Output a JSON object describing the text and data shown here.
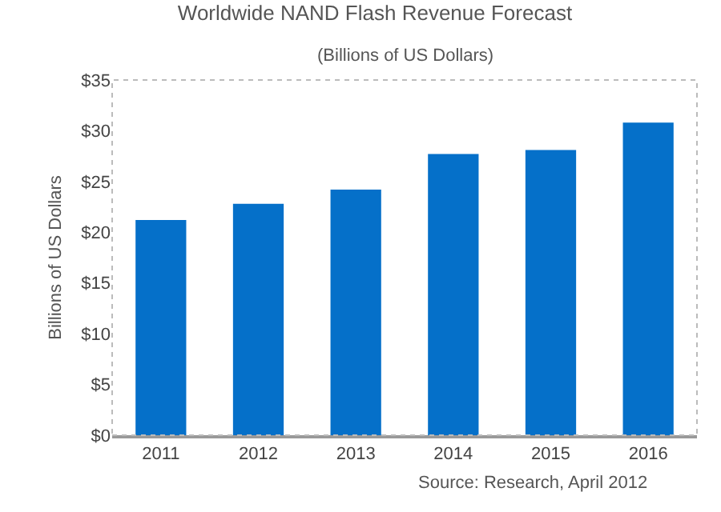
{
  "chart_data": {
    "type": "bar",
    "title": "Worldwide NAND Flash Revenue Forecast",
    "subtitle": "(Billions of US Dollars)",
    "ylabel": "Billions of US Dollars",
    "categories": [
      "2011",
      "2012",
      "2013",
      "2014",
      "2015",
      "2016"
    ],
    "values": [
      21.2,
      22.8,
      24.2,
      27.7,
      28.1,
      30.8
    ],
    "color": "#0570c9",
    "ylim": [
      0,
      35
    ],
    "yticks": [
      {
        "value": 0,
        "label": "$0"
      },
      {
        "value": 5,
        "label": "$5"
      },
      {
        "value": 10,
        "label": "$10"
      },
      {
        "value": 15,
        "label": "$15"
      },
      {
        "value": 20,
        "label": "$20"
      },
      {
        "value": 25,
        "label": "$25"
      },
      {
        "value": 30,
        "label": "$30"
      },
      {
        "value": 35,
        "label": "$35"
      }
    ],
    "grid": false,
    "legend": false,
    "annotations": [
      "Source: Research, April 2012"
    ]
  }
}
